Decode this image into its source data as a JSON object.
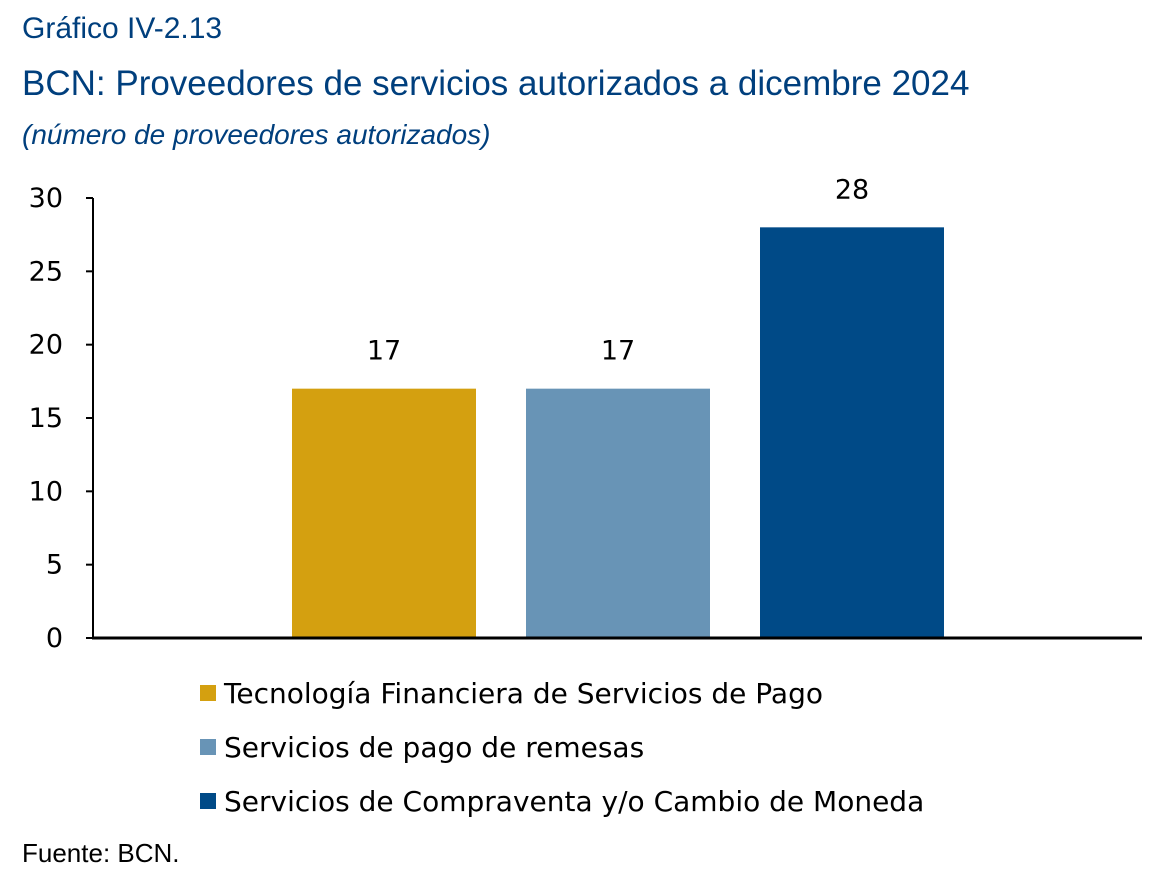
{
  "header": {
    "label": "Gráfico IV-2.13",
    "title": "BCN: Proveedores de servicios autorizados a dicembre 2024",
    "subtitle": "(número de proveedores autorizados)"
  },
  "chart_data": {
    "type": "bar",
    "title": "BCN: Proveedores de servicios autorizados a dicembre 2024",
    "subtitle": "(número de proveedores autorizados)",
    "xlabel": "",
    "ylabel": "",
    "ylim": [
      0,
      30
    ],
    "yticks": [
      0,
      5,
      10,
      15,
      20,
      25,
      30
    ],
    "grid": false,
    "legend_position": "bottom",
    "series": [
      {
        "name": "Tecnología Financiera de Servicios de Pago",
        "values": [
          17
        ],
        "color": "#D4A010"
      },
      {
        "name": "Servicios de pago de remesas",
        "values": [
          17
        ],
        "color": "#6894B6"
      },
      {
        "name": "Servicios de Compraventa y/o Cambio de Moneda",
        "values": [
          28
        ],
        "color": "#004A87"
      }
    ],
    "data_labels": [
      "17",
      "17",
      "28"
    ]
  },
  "source": "Fuente: BCN."
}
